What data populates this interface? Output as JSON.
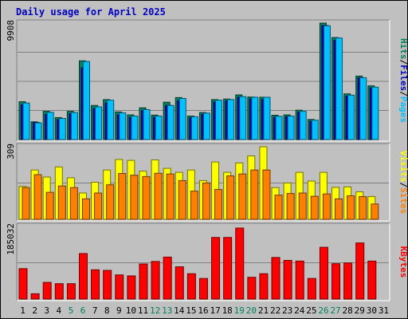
{
  "chart_data": {
    "type": "bar",
    "title": "Daily usage for April 2025",
    "categories": [
      "1",
      "2",
      "3",
      "4",
      "5",
      "6",
      "7",
      "8",
      "9",
      "10",
      "11",
      "12",
      "13",
      "14",
      "15",
      "16",
      "17",
      "18",
      "19",
      "20",
      "21",
      "22",
      "23",
      "24",
      "25",
      "26",
      "27",
      "28",
      "29",
      "30",
      "31"
    ],
    "weekend_days": [
      "5",
      "6",
      "12",
      "13",
      "19",
      "20",
      "26",
      "27"
    ],
    "colors": {
      "hits": "#00805c",
      "files": "#0000c0",
      "pages": "#00c0ff",
      "visits": "#ffff00",
      "sites": "#ff8000",
      "kbytes": "#ff0000",
      "weekend_label": "#00805c",
      "weekday_label": "#000000"
    },
    "panels": [
      {
        "id": "hpf",
        "ymax_label": "9908",
        "ylim": [
          0,
          9908
        ],
        "side_labels": [
          {
            "text": "Pages",
            "color": "#00c0ff"
          },
          {
            "text": "/",
            "color": "#000000"
          },
          {
            "text": "Files",
            "color": "#0000c0"
          },
          {
            "text": "/",
            "color": "#000000"
          },
          {
            "text": "Hits",
            "color": "#00805c"
          }
        ],
        "series": [
          {
            "key": "hits",
            "values": [
              3220,
              1510,
              2400,
              1870,
              2400,
              6700,
              2900,
              3400,
              2350,
              2100,
              2700,
              2080,
              3180,
              3570,
              2000,
              2300,
              3400,
              3450,
              3800,
              3620,
              3600,
              2070,
              2100,
              2500,
              1710,
              9908,
              8680,
              3890,
              5400,
              4570,
              0
            ]
          },
          {
            "key": "files",
            "values": [
              2950,
              1450,
              2130,
              1700,
              2200,
              6100,
              2650,
              3100,
              2100,
              1880,
              2450,
              1880,
              2900,
              3300,
              1850,
              2150,
              3200,
              3300,
              3600,
              3460,
              3400,
              1900,
              1950,
              2320,
              1550,
              9700,
              8450,
              3700,
              5250,
              4400,
              0
            ]
          },
          {
            "key": "pages",
            "values": [
              3110,
              1420,
              2320,
              1800,
              2300,
              6640,
              2780,
              3350,
              2270,
              2000,
              2550,
              2000,
              2900,
              3500,
              1940,
              2250,
              3350,
              3400,
              3650,
              3600,
              3600,
              1980,
              2000,
              2400,
              1650,
              9680,
              8640,
              3780,
              5260,
              4460,
              0
            ]
          }
        ]
      },
      {
        "id": "vs",
        "ymax_label": "309",
        "ylim": [
          0,
          309
        ],
        "side_labels": [
          {
            "text": "Sites",
            "color": "#ff8000"
          },
          {
            "text": "/",
            "color": "#000000"
          },
          {
            "text": "Visits",
            "color": "#ffff00"
          }
        ],
        "series": [
          {
            "key": "visits",
            "values": [
              140,
              210,
              180,
              223,
              177,
              112,
              158,
              210,
              255,
              251,
              205,
              253,
              217,
              200,
              210,
              165,
              244,
              200,
              240,
              270,
              309,
              135,
              155,
              200,
              163,
              200,
              136,
              138,
              117,
              97,
              0
            ]
          },
          {
            "key": "sites",
            "values": [
              135,
              190,
              115,
              142,
              135,
              87,
              112,
              147,
              195,
              188,
              182,
              196,
              193,
              165,
              120,
              155,
              127,
              185,
              193,
              210,
              210,
              103,
              110,
              112,
              98,
              108,
              87,
              100,
              97,
              65,
              0
            ]
          }
        ]
      },
      {
        "id": "kb",
        "ymax_label": "185032",
        "ylim": [
          0,
          185032
        ],
        "side_labels": [
          {
            "text": "KBytes",
            "color": "#ff0000"
          }
        ],
        "series": [
          {
            "key": "kbytes",
            "values": [
              77600,
              13500,
              42500,
              39200,
              39200,
              116000,
              74600,
              73100,
              61600,
              59100,
              89400,
              95800,
              107000,
              82200,
              64600,
              52500,
              157000,
              157000,
              181000,
              55500,
              64600,
              106000,
              98600,
              96800,
              52500,
              132000,
              90100,
              92100,
              143000,
              96800,
              0
            ]
          }
        ]
      }
    ]
  }
}
